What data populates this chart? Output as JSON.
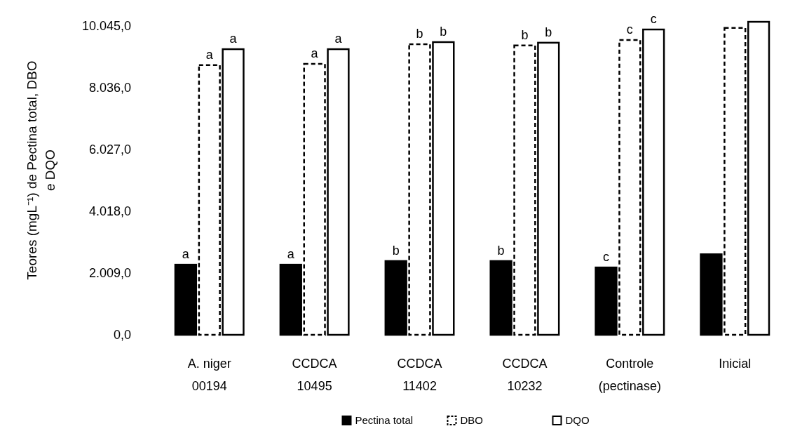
{
  "chart_data": {
    "type": "bar",
    "ylabel": "Teores (mgL⁻¹) de Pectina total, DBO e DQO",
    "categories": [
      "A. niger\n00194",
      "CCDCA\n10495",
      "CCDCA\n11402",
      "CCDCA\n10232",
      "Controle\n(pectinase)",
      "Inicial"
    ],
    "series": [
      {
        "name": "Pectina total",
        "color": "#000000",
        "line_style": "solid",
        "values": [
          2280,
          2280,
          2400,
          2400,
          2190,
          2620
        ],
        "value_labels": [
          "a",
          "a",
          "b",
          "b",
          "c",
          null
        ]
      },
      {
        "name": "DBO",
        "color": "#ffffff",
        "line_style": "dashed",
        "values": [
          8770,
          8810,
          9450,
          9410,
          9590,
          9980
        ],
        "value_labels": [
          "a",
          "a",
          "b",
          "b",
          "c",
          null
        ]
      },
      {
        "name": "DQO",
        "color": "#ffffff",
        "line_style": "solid",
        "values": [
          9290,
          9290,
          9520,
          9500,
          9930,
          10180
        ],
        "value_labels": [
          "a",
          "a",
          "b",
          "b",
          "c",
          null
        ]
      }
    ],
    "ylim": [
      0,
      10250
    ],
    "yticks": [
      {
        "value": 0,
        "label": "0,0"
      },
      {
        "value": 2009,
        "label": "2.009,0"
      },
      {
        "value": 4018,
        "label": "4.018,0"
      },
      {
        "value": 6027,
        "label": "6.027,0"
      },
      {
        "value": 8036,
        "label": "8.036,0"
      },
      {
        "value": 10045,
        "label": "10.045,0"
      }
    ],
    "grid": false,
    "legend": "bottom"
  }
}
